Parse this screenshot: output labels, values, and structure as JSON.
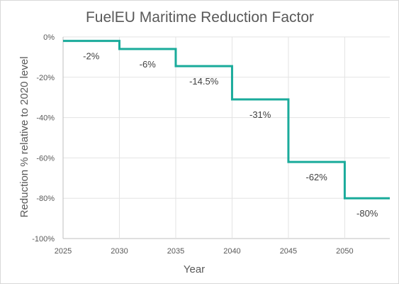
{
  "chart_data": {
    "type": "line",
    "title": "FuelEU Maritime Reduction Factor",
    "xlabel": "Year",
    "ylabel": "Reduction % relative to 2020 level",
    "step": true,
    "x": [
      2025,
      2030,
      2035,
      2040,
      2045,
      2050
    ],
    "values": [
      -2,
      -6,
      -14.5,
      -31,
      -62,
      -80
    ],
    "data_labels": [
      "-2%",
      "-6%",
      "-14.5%",
      "-31%",
      "-62%",
      "-80%"
    ],
    "xlim": [
      2025,
      2054
    ],
    "ylim": [
      -100,
      0
    ],
    "x_ticks": [
      2025,
      2030,
      2035,
      2040,
      2045,
      2050
    ],
    "x_tick_labels": [
      "2025",
      "2030",
      "2035",
      "2040",
      "2045",
      "2050"
    ],
    "y_ticks": [
      0,
      -20,
      -40,
      -60,
      -80,
      -100
    ],
    "y_tick_labels": [
      "0%",
      "-20%",
      "-40%",
      "-60%",
      "-80%",
      "-100%"
    ],
    "grid": true,
    "legend": "none",
    "line_color": "#1aab9b"
  }
}
